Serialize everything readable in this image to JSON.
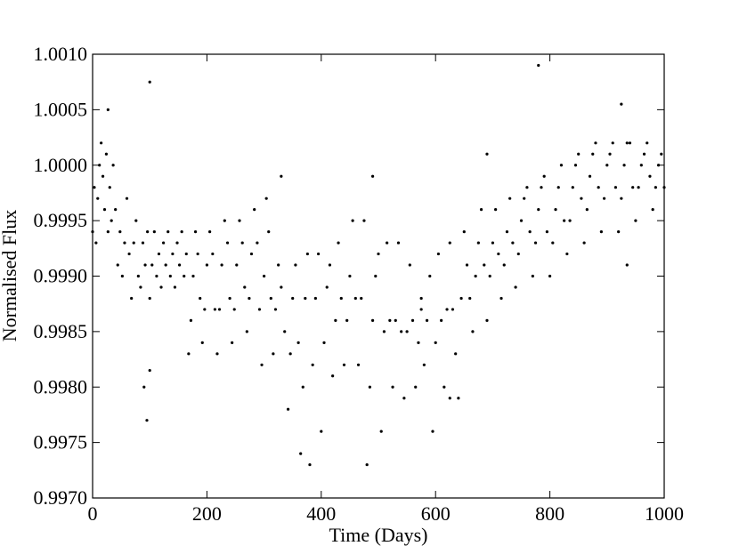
{
  "chart_data": {
    "type": "scatter",
    "xlabel": "Time (Days)",
    "ylabel": "Normalised Flux",
    "color": "#000000",
    "xlim": [
      0,
      1000
    ],
    "xticks": [
      0,
      200,
      400,
      600,
      800,
      1000
    ],
    "ylim": [
      0.997,
      1.001
    ],
    "yticks": [
      {
        "value": 0.997,
        "label": "0.9970"
      },
      {
        "value": 0.9975,
        "label": "0.9975"
      },
      {
        "value": 0.998,
        "label": "0.9980"
      },
      {
        "value": 0.9985,
        "label": "0.9985"
      },
      {
        "value": 0.999,
        "label": "0.9990"
      },
      {
        "value": 0.9995,
        "label": "0.9995"
      },
      {
        "value": 1.0,
        "label": "1.0000"
      },
      {
        "value": 1.0005,
        "label": "1.0005"
      },
      {
        "value": 1.001,
        "label": "1.0010"
      }
    ],
    "x": [
      0,
      3,
      6,
      9,
      12,
      15,
      18,
      21,
      24,
      27,
      30,
      33,
      36,
      40,
      44,
      48,
      52,
      56,
      60,
      64,
      68,
      72,
      76,
      80,
      84,
      88,
      92,
      96,
      100,
      104,
      108,
      112,
      116,
      120,
      124,
      128,
      132,
      136,
      140,
      144,
      148,
      152,
      156,
      160,
      164,
      168,
      172,
      176,
      180,
      184,
      188,
      192,
      196,
      200,
      205,
      210,
      214,
      218,
      222,
      226,
      231,
      236,
      240,
      244,
      248,
      252,
      257,
      262,
      266,
      270,
      274,
      278,
      283,
      288,
      292,
      296,
      300,
      304,
      308,
      312,
      316,
      320,
      325,
      330,
      336,
      342,
      346,
      350,
      355,
      360,
      364,
      368,
      372,
      376,
      380,
      385,
      390,
      395,
      400,
      405,
      410,
      415,
      420,
      425,
      430,
      435,
      440,
      445,
      450,
      455,
      460,
      465,
      470,
      475,
      480,
      485,
      490,
      495,
      500,
      505,
      510,
      515,
      520,
      525,
      530,
      535,
      540,
      545,
      550,
      555,
      560,
      565,
      570,
      575,
      580,
      585,
      590,
      595,
      600,
      605,
      610,
      615,
      620,
      625,
      630,
      635,
      640,
      645,
      650,
      655,
      660,
      665,
      670,
      675,
      680,
      685,
      690,
      695,
      700,
      705,
      710,
      715,
      720,
      725,
      730,
      735,
      740,
      745,
      750,
      755,
      760,
      765,
      770,
      775,
      780,
      785,
      790,
      795,
      800,
      805,
      810,
      815,
      820,
      825,
      830,
      835,
      840,
      845,
      850,
      855,
      860,
      865,
      870,
      875,
      880,
      885,
      890,
      895,
      900,
      905,
      910,
      915,
      920,
      925,
      930,
      935,
      940,
      945,
      950,
      955,
      960,
      965,
      970,
      975,
      980,
      985,
      990,
      995,
      1000,
      27,
      100,
      95,
      100,
      90,
      330,
      490,
      690,
      780,
      925,
      935,
      575,
      625
    ],
    "values": [
      0.9994,
      0.9998,
      0.9993,
      0.9997,
      1.0,
      1.0002,
      0.9999,
      0.9996,
      1.0001,
      0.9994,
      0.9998,
      0.9995,
      1.0,
      0.9996,
      0.9991,
      0.9994,
      0.999,
      0.9993,
      0.9997,
      0.9992,
      0.9988,
      0.9993,
      0.9995,
      0.999,
      0.9989,
      0.9993,
      0.9991,
      0.9994,
      0.9988,
      0.9991,
      0.9994,
      0.999,
      0.9992,
      0.9989,
      0.9993,
      0.9991,
      0.9994,
      0.999,
      0.9992,
      0.9989,
      0.9993,
      0.9991,
      0.9994,
      0.999,
      0.9992,
      0.9983,
      0.9986,
      0.999,
      0.9994,
      0.9992,
      0.9988,
      0.9984,
      0.9987,
      0.9991,
      0.9994,
      0.9992,
      0.9987,
      0.9983,
      0.9987,
      0.9991,
      0.9995,
      0.9993,
      0.9988,
      0.9984,
      0.9987,
      0.9991,
      0.9995,
      0.9993,
      0.9989,
      0.9985,
      0.9988,
      0.9992,
      0.9996,
      0.9993,
      0.9987,
      0.9982,
      0.999,
      0.9997,
      0.9994,
      0.9988,
      0.9983,
      0.9987,
      0.9991,
      0.9989,
      0.9985,
      0.9978,
      0.9983,
      0.9988,
      0.9991,
      0.9984,
      0.9974,
      0.998,
      0.9988,
      0.9992,
      0.9973,
      0.9982,
      0.9988,
      0.9992,
      0.9976,
      0.9984,
      0.9989,
      0.9991,
      0.9981,
      0.9986,
      0.9993,
      0.9988,
      0.9982,
      0.9986,
      0.999,
      0.9995,
      0.9988,
      0.9982,
      0.9988,
      0.9995,
      0.9973,
      0.998,
      0.9986,
      0.999,
      0.9992,
      0.9976,
      0.9985,
      0.9993,
      0.9986,
      0.998,
      0.9986,
      0.9993,
      0.9985,
      0.9979,
      0.9985,
      0.9991,
      0.9986,
      0.998,
      0.9984,
      0.9988,
      0.9982,
      0.9986,
      0.999,
      0.9976,
      0.9984,
      0.9992,
      0.9986,
      0.998,
      0.9987,
      0.9993,
      0.9987,
      0.9983,
      0.9979,
      0.9988,
      0.9994,
      0.9991,
      0.9988,
      0.9985,
      0.999,
      0.9993,
      0.9996,
      0.9991,
      0.9986,
      0.999,
      0.9993,
      0.9996,
      0.9992,
      0.9988,
      0.9991,
      0.9994,
      0.9997,
      0.9993,
      0.9989,
      0.9992,
      0.9995,
      0.9997,
      0.9998,
      0.9994,
      0.999,
      0.9993,
      0.9996,
      0.9998,
      0.9999,
      0.9994,
      0.999,
      0.9993,
      0.9996,
      0.9998,
      1.0,
      0.9995,
      0.9992,
      0.9995,
      0.9998,
      1.0,
      1.0001,
      0.9997,
      0.9993,
      0.9996,
      0.9999,
      1.0001,
      1.0002,
      0.9998,
      0.9994,
      0.9997,
      1.0,
      1.0001,
      1.0002,
      0.9998,
      0.9994,
      0.9997,
      1.0,
      1.0002,
      1.0002,
      0.9998,
      0.9995,
      0.9998,
      1.0,
      1.0001,
      1.0002,
      0.9999,
      0.9996,
      0.9998,
      1.0,
      1.0001,
      0.9998,
      1.0005,
      1.00075,
      0.9977,
      0.99815,
      0.998,
      0.9999,
      0.9999,
      1.0001,
      1.0009,
      1.00055,
      0.9991,
      0.9987,
      0.9979
    ]
  }
}
